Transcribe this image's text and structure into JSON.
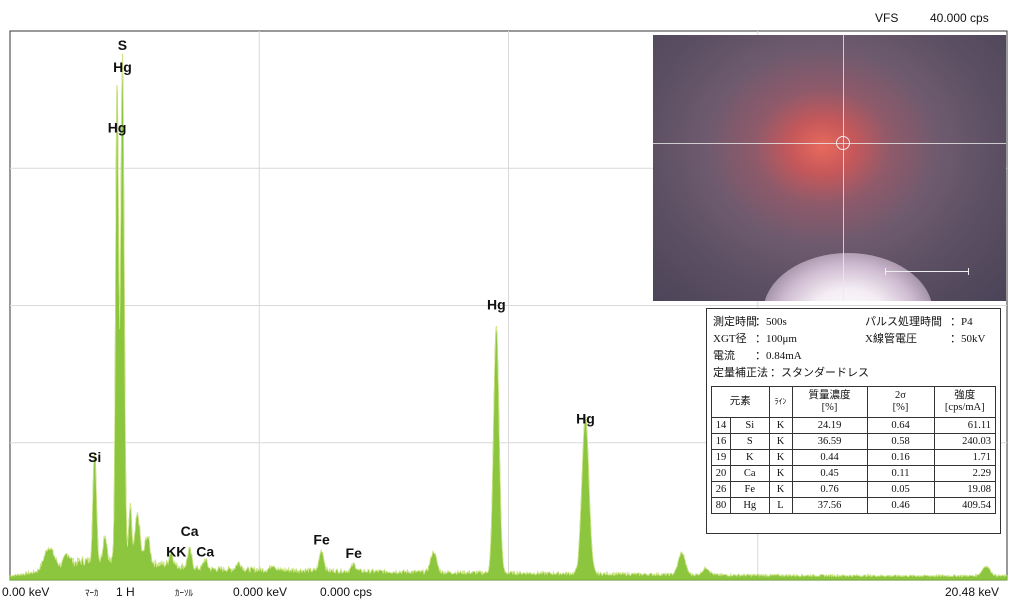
{
  "header": {
    "vfs_label": "VFS",
    "vfs_value": "40.000 cps"
  },
  "footer": {
    "x_start": "0.00 keV",
    "marker_label": "ﾏｰｶ",
    "marker_value": "1 H",
    "cursor_label": "ｶｰｿﾙ",
    "cursor_kev": "0.000 keV",
    "cursor_cps": "0.000 cps",
    "x_end": "20.48 keV"
  },
  "chart_data": {
    "type": "area",
    "xlim": [
      0,
      20.48
    ],
    "ylim": [
      0,
      40
    ],
    "grid": true,
    "color": "#8cc63f",
    "peaks": [
      {
        "x": 0.8,
        "y": 1.6,
        "w": 0.1
      },
      {
        "x": 1.18,
        "y": 0.8,
        "w": 0.06
      },
      {
        "x": 1.74,
        "y": 8.0,
        "w": 0.035
      },
      {
        "x": 1.95,
        "y": 2.0,
        "w": 0.04
      },
      {
        "x": 2.2,
        "y": 35.5,
        "w": 0.03
      },
      {
        "x": 2.31,
        "y": 37.0,
        "w": 0.035
      },
      {
        "x": 2.47,
        "y": 4.0,
        "w": 0.03
      },
      {
        "x": 2.62,
        "y": 3.5,
        "w": 0.05
      },
      {
        "x": 2.82,
        "y": 2.0,
        "w": 0.05
      },
      {
        "x": 3.31,
        "y": 1.0,
        "w": 0.04
      },
      {
        "x": 3.69,
        "y": 1.3,
        "w": 0.04
      },
      {
        "x": 4.01,
        "y": 0.7,
        "w": 0.04
      },
      {
        "x": 4.7,
        "y": 0.5,
        "w": 0.05
      },
      {
        "x": 5.4,
        "y": 0.4,
        "w": 0.05
      },
      {
        "x": 6.4,
        "y": 1.5,
        "w": 0.045
      },
      {
        "x": 7.06,
        "y": 0.5,
        "w": 0.045
      },
      {
        "x": 8.7,
        "y": 1.5,
        "w": 0.06
      },
      {
        "x": 9.99,
        "y": 18.0,
        "w": 0.055
      },
      {
        "x": 11.82,
        "y": 11.5,
        "w": 0.07
      },
      {
        "x": 13.8,
        "y": 1.6,
        "w": 0.07
      },
      {
        "x": 14.3,
        "y": 0.5,
        "w": 0.07
      },
      {
        "x": 20.05,
        "y": 0.7,
        "w": 0.08
      }
    ],
    "background": [
      {
        "x": 0.0,
        "y": 0.3
      },
      {
        "x": 0.6,
        "y": 0.6
      },
      {
        "x": 1.5,
        "y": 1.4
      },
      {
        "x": 3.0,
        "y": 1.2
      },
      {
        "x": 4.0,
        "y": 0.8
      },
      {
        "x": 6.0,
        "y": 0.7
      },
      {
        "x": 9.0,
        "y": 0.55
      },
      {
        "x": 12.0,
        "y": 0.45
      },
      {
        "x": 15.0,
        "y": 0.35
      },
      {
        "x": 18.0,
        "y": 0.3
      },
      {
        "x": 20.48,
        "y": 0.3
      }
    ],
    "labels": [
      {
        "text": "S",
        "x": 2.31,
        "y": 38.6
      },
      {
        "text": "Hg",
        "x": 2.31,
        "y": 37.0
      },
      {
        "text": "Hg",
        "x": 2.2,
        "y": 32.6
      },
      {
        "text": "Hg",
        "x": 9.99,
        "y": 19.7
      },
      {
        "text": "Hg",
        "x": 11.82,
        "y": 11.4
      },
      {
        "text": "Si",
        "x": 1.74,
        "y": 8.6
      },
      {
        "text": "Ca",
        "x": 3.69,
        "y": 3.2
      },
      {
        "text": "K",
        "x": 3.31,
        "y": 1.7
      },
      {
        "text": "K",
        "x": 3.52,
        "y": 1.7
      },
      {
        "text": "Ca",
        "x": 4.01,
        "y": 1.7
      },
      {
        "text": "Fe",
        "x": 6.4,
        "y": 2.6
      },
      {
        "text": "Fe",
        "x": 7.06,
        "y": 1.6
      }
    ]
  },
  "measurement": {
    "time_label": "測定時間",
    "time_value": "：500s",
    "pulse_label": "パルス処理時間",
    "pulse_value": "：P4",
    "xgt_label": "XGT径",
    "xgt_value": "：100μm",
    "voltage_label": "X線管電圧",
    "voltage_value": "：50kV",
    "current_label": "電流",
    "current_value": "：0.84mA",
    "correction_label": "定量補正法",
    "correction_value": "：スタンダードレス"
  },
  "table": {
    "headers": {
      "element": "元素",
      "line": "ﾗｲﾝ",
      "mass": "質量濃度",
      "mass_unit": "[%]",
      "sigma": "2σ",
      "sigma_unit": "[%]",
      "intensity": "強度",
      "intensity_unit": "[cps/mA]"
    },
    "rows": [
      {
        "z": "14",
        "el": "Si",
        "line": "K",
        "mass": "24.19",
        "sigma": "0.64",
        "intensity": "61.11"
      },
      {
        "z": "16",
        "el": "S",
        "line": "K",
        "mass": "36.59",
        "sigma": "0.58",
        "intensity": "240.03"
      },
      {
        "z": "19",
        "el": "K",
        "line": "K",
        "mass": "0.44",
        "sigma": "0.16",
        "intensity": "1.71"
      },
      {
        "z": "20",
        "el": "Ca",
        "line": "K",
        "mass": "0.45",
        "sigma": "0.11",
        "intensity": "2.29"
      },
      {
        "z": "26",
        "el": "Fe",
        "line": "K",
        "mass": "0.76",
        "sigma": "0.05",
        "intensity": "19.08"
      },
      {
        "z": "80",
        "el": "Hg",
        "line": "L",
        "mass": "37.56",
        "sigma": "0.46",
        "intensity": "409.54"
      }
    ]
  }
}
